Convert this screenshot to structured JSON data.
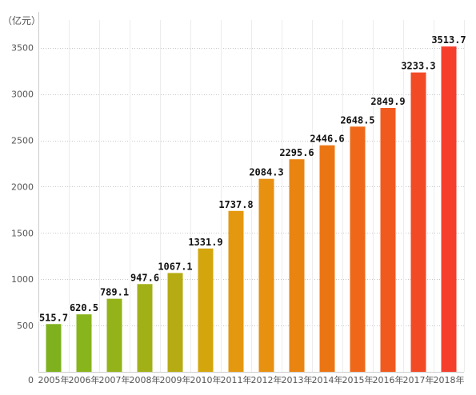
{
  "chart_data": {
    "type": "bar",
    "unit_label": "（亿元）",
    "categories": [
      "2005年",
      "2006年",
      "2007年",
      "2008年",
      "2009年",
      "2010年",
      "2011年",
      "2012年",
      "2013年",
      "2014年",
      "2015年",
      "2016年",
      "2017年",
      "2018年"
    ],
    "values": [
      515.7,
      620.5,
      789.1,
      947.6,
      1067.1,
      1331.9,
      1737.8,
      2084.3,
      2295.6,
      2446.6,
      2648.5,
      2849.9,
      3233.3,
      3513.7
    ],
    "data_labels": [
      "515.7",
      "620.5",
      "789.1",
      "947.6",
      "1067.1",
      "1331.9",
      "1737.8",
      "2084.3",
      "2295.6",
      "2446.6",
      "2648.5",
      "2849.9",
      "3233.3",
      "3513.7"
    ],
    "yticks": [
      0,
      500,
      1000,
      1500,
      2000,
      2500,
      3000,
      3500
    ],
    "ylim": [
      0,
      3800
    ],
    "grid": true,
    "colors": [
      "#7fb11f",
      "#88b41c",
      "#94b31a",
      "#a2b018",
      "#b6ab12",
      "#d4a60e",
      "#e3980f",
      "#e8900f",
      "#ea8410",
      "#ec7513",
      "#ef6819",
      "#f15a1e",
      "#f34a26",
      "#f53e2c"
    ]
  }
}
